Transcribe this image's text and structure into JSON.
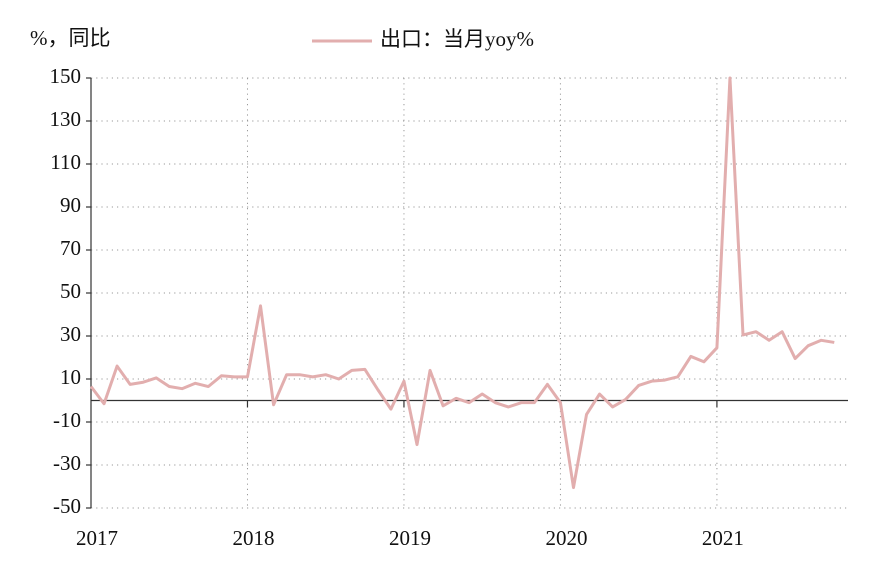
{
  "chart_data": {
    "type": "line",
    "y_axis_label": "%，同比",
    "categories": [
      "2017",
      null,
      null,
      null,
      null,
      null,
      null,
      null,
      null,
      null,
      null,
      null,
      "2018",
      null,
      null,
      null,
      null,
      null,
      null,
      null,
      null,
      null,
      null,
      null,
      "2019",
      null,
      null,
      null,
      null,
      null,
      null,
      null,
      null,
      null,
      null,
      null,
      "2020",
      null,
      null,
      null,
      null,
      null,
      null,
      null,
      null,
      null,
      null,
      null,
      "2021",
      null,
      null,
      null,
      null,
      null,
      null,
      null,
      null,
      null
    ],
    "series": [
      {
        "name": "出口：当月yoy%",
        "color": "#e2aeae",
        "values": [
          6.5,
          -1.5,
          16,
          7.5,
          8.5,
          10.5,
          6.5,
          5.5,
          8,
          6.5,
          11.5,
          11,
          11,
          44,
          -2,
          12,
          12,
          11,
          12,
          10,
          14,
          14.5,
          5,
          -4,
          9,
          -20.5,
          14,
          -2.5,
          1,
          -1,
          3,
          -1,
          -3,
          -1,
          -1,
          7.5,
          -1,
          -40.5,
          -6.5,
          3,
          -3,
          0.5,
          7,
          9,
          9.5,
          11,
          20.5,
          18,
          24.5,
          150,
          30.5,
          32,
          28,
          32,
          19.5,
          25.5,
          28,
          27
        ]
      }
    ],
    "ylim": [
      -50,
      150
    ],
    "yticks": [
      -50,
      -30,
      -10,
      10,
      30,
      50,
      70,
      90,
      110,
      130,
      150
    ],
    "grid": true
  }
}
